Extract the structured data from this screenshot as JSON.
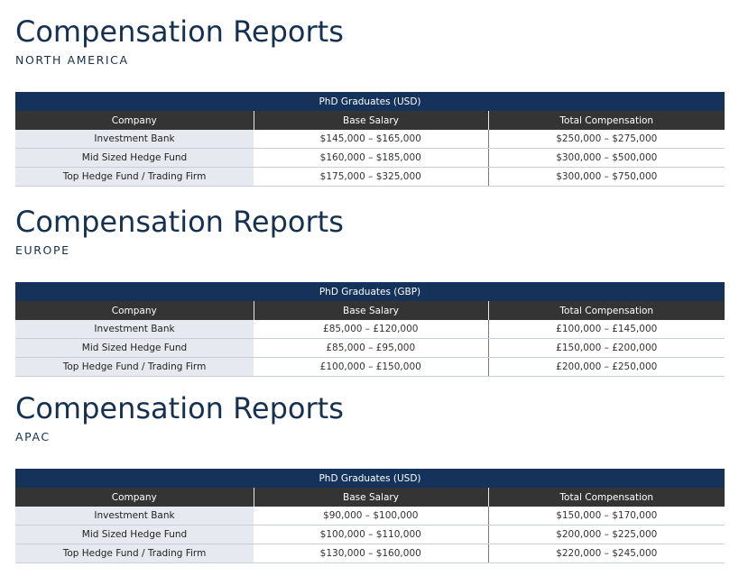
{
  "sections": [
    {
      "title": "Compensation Reports",
      "region": "NORTH AMERICA",
      "caption": "PhD Graduates (USD)",
      "headers": [
        "Company",
        "Base Salary",
        "Total Compensation"
      ],
      "rows": [
        [
          "Investment Bank",
          "$145,000 – $165,000",
          "$250,000 – $275,000"
        ],
        [
          "Mid Sized Hedge Fund",
          "$160,000 – $185,000",
          "$300,000 – $500,000"
        ],
        [
          "Top Hedge Fund / Trading Firm",
          "$175,000 – $325,000",
          "$300,000 – $750,000"
        ]
      ]
    },
    {
      "title": "Compensation Reports",
      "region": "EUROPE",
      "caption": "PhD Graduates (GBP)",
      "headers": [
        "Company",
        "Base Salary",
        "Total Compensation"
      ],
      "rows": [
        [
          "Investment Bank",
          "£85,000 – £120,000",
          "£100,000 – £145,000"
        ],
        [
          "Mid Sized Hedge Fund",
          "£85,000 – £95,000",
          "£150,000 – £200,000"
        ],
        [
          "Top Hedge Fund / Trading Firm",
          "£100,000 – £150,000",
          "£200,000 – £250,000"
        ]
      ]
    },
    {
      "title": "Compensation Reports",
      "region": "APAC",
      "caption": "PhD Graduates (USD)",
      "headers": [
        "Company",
        "Base Salary",
        "Total Compensation"
      ],
      "rows": [
        [
          "Investment Bank",
          "$90,000 – $100,000",
          "$150,000 – $170,000"
        ],
        [
          "Mid Sized Hedge Fund",
          "$100,000 – $110,000",
          "$200,000 – $225,000"
        ],
        [
          "Top Hedge Fund / Trading Firm",
          "$130,000 – $160,000",
          "$220,000 – $245,000"
        ]
      ]
    }
  ]
}
